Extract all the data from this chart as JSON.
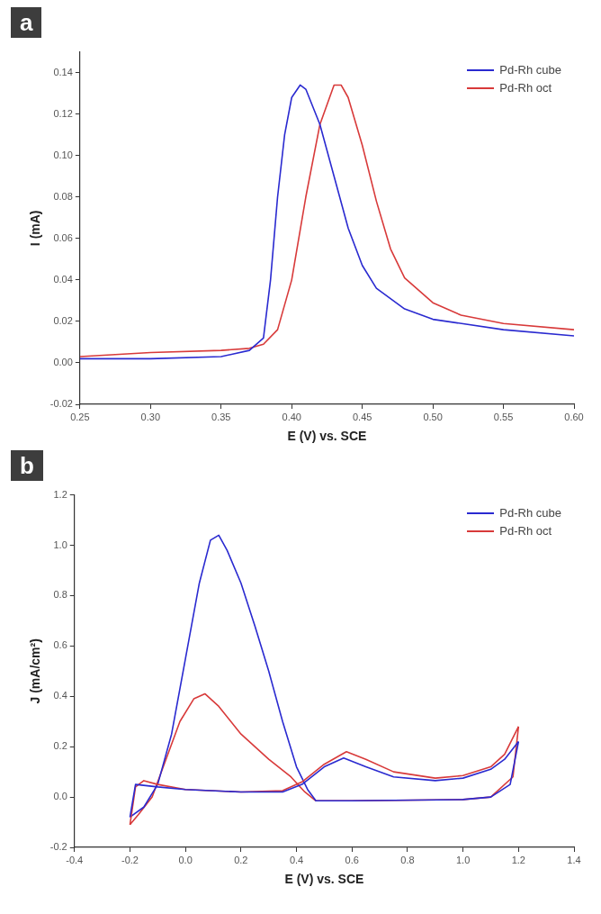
{
  "chart_data": [
    {
      "type": "line",
      "title": "a",
      "xlabel": "E (V) vs. SCE",
      "ylabel": "I (mA)",
      "legend": "top right",
      "grid": false,
      "marker": "none",
      "line_style": "solid",
      "xlim": [
        0.25,
        0.6
      ],
      "xticks": [
        {
          "value": 0.25,
          "label": "0.25"
        },
        {
          "value": 0.3,
          "label": "0.30"
        },
        {
          "value": 0.35,
          "label": "0.35"
        },
        {
          "value": 0.4,
          "label": "0.40"
        },
        {
          "value": 0.45,
          "label": "0.45"
        },
        {
          "value": 0.5,
          "label": "0.50"
        },
        {
          "value": 0.55,
          "label": "0.55"
        },
        {
          "value": 0.6,
          "label": "0.60"
        }
      ],
      "ylim": [
        -0.02,
        0.15
      ],
      "yticks": [
        {
          "value": -0.02,
          "label": "-0.02"
        },
        {
          "value": 0,
          "label": "0.00"
        },
        {
          "value": 0.02,
          "label": "0.02"
        },
        {
          "value": 0.04,
          "label": "0.04"
        },
        {
          "value": 0.06,
          "label": "0.06"
        },
        {
          "value": 0.08,
          "label": "0.08"
        },
        {
          "value": 0.1,
          "label": "0.10"
        },
        {
          "value": 0.12,
          "label": "0.12"
        },
        {
          "value": 0.14,
          "label": "0.14"
        }
      ],
      "series": [
        {
          "name": "Pd-Rh cube",
          "color": "#2a2ad0",
          "x": [
            0.25,
            0.3,
            0.35,
            0.37,
            0.38,
            0.385,
            0.39,
            0.395,
            0.4,
            0.406,
            0.41,
            0.42,
            0.43,
            0.44,
            0.45,
            0.46,
            0.48,
            0.5,
            0.55,
            0.6
          ],
          "values": [
            0.002,
            0.002,
            0.003,
            0.006,
            0.012,
            0.04,
            0.08,
            0.11,
            0.128,
            0.134,
            0.132,
            0.115,
            0.09,
            0.065,
            0.047,
            0.036,
            0.026,
            0.021,
            0.016,
            0.013
          ]
        },
        {
          "name": "Pd-Rh oct",
          "color": "#d83a3a",
          "x": [
            0.25,
            0.3,
            0.35,
            0.37,
            0.38,
            0.39,
            0.4,
            0.41,
            0.42,
            0.43,
            0.435,
            0.44,
            0.45,
            0.46,
            0.47,
            0.48,
            0.5,
            0.52,
            0.55,
            0.6
          ],
          "values": [
            0.003,
            0.005,
            0.006,
            0.007,
            0.009,
            0.016,
            0.04,
            0.08,
            0.115,
            0.134,
            0.134,
            0.128,
            0.105,
            0.078,
            0.055,
            0.041,
            0.029,
            0.023,
            0.019,
            0.016
          ]
        }
      ]
    },
    {
      "type": "line",
      "title": "b",
      "xlabel": "E (V) vs. SCE",
      "ylabel": "J (mA/cm²)",
      "legend": "top right",
      "grid": false,
      "marker": "none",
      "line_style": "solid",
      "xlim": [
        -0.4,
        1.4
      ],
      "xticks": [
        {
          "value": -0.4,
          "label": "-0.4"
        },
        {
          "value": -0.2,
          "label": "-0.2"
        },
        {
          "value": 0,
          "label": "0.0"
        },
        {
          "value": 0.2,
          "label": "0.2"
        },
        {
          "value": 0.4,
          "label": "0.4"
        },
        {
          "value": 0.6,
          "label": "0.6"
        },
        {
          "value": 0.8,
          "label": "0.8"
        },
        {
          "value": 1,
          "label": "1.0"
        },
        {
          "value": 1.2,
          "label": "1.2"
        },
        {
          "value": 1.4,
          "label": "1.4"
        }
      ],
      "ylim": [
        -0.2,
        1.2
      ],
      "yticks": [
        {
          "value": -0.2,
          "label": "-0.2"
        },
        {
          "value": 0,
          "label": "0.0"
        },
        {
          "value": 0.2,
          "label": "0.2"
        },
        {
          "value": 0.4,
          "label": "0.4"
        },
        {
          "value": 0.6,
          "label": "0.6"
        },
        {
          "value": 0.8,
          "label": "0.8"
        },
        {
          "value": 1,
          "label": "1.0"
        },
        {
          "value": 1.2,
          "label": "1.2"
        }
      ],
      "series": [
        {
          "name": "Pd-Rh cube",
          "color": "#2a2ad0",
          "x": [
            -0.2,
            -0.18,
            -0.1,
            0,
            0.2,
            0.35,
            0.42,
            0.5,
            0.57,
            0.65,
            0.75,
            0.9,
            1.0,
            1.1,
            1.15,
            1.2
          ],
          "values": [
            -0.08,
            0.05,
            0.04,
            0.03,
            0.02,
            0.02,
            0.05,
            0.12,
            0.155,
            0.12,
            0.08,
            0.065,
            0.075,
            0.11,
            0.15,
            0.22
          ]
        },
        {
          "name": "Pd-Rh oct",
          "color": "#d83a3a",
          "x": [
            -0.2,
            -0.18,
            -0.15,
            -0.1,
            0,
            0.2,
            0.35,
            0.42,
            0.5,
            0.58,
            0.65,
            0.75,
            0.9,
            1.0,
            1.1,
            1.15,
            1.2
          ],
          "values": [
            -0.11,
            0.04,
            0.065,
            0.05,
            0.03,
            0.02,
            0.025,
            0.06,
            0.13,
            0.18,
            0.15,
            0.1,
            0.075,
            0.085,
            0.12,
            0.17,
            0.28
          ]
        },
        {
          "color": "#2a2ad0",
          "x": [
            1.2,
            1.17,
            1.1,
            1.0,
            0.6,
            0.47,
            0.44,
            0.4,
            0.35,
            0.3,
            0.25,
            0.2,
            0.15,
            0.12,
            0.09,
            0.05,
            0,
            -0.05,
            -0.1,
            -0.15,
            -0.2
          ],
          "values": [
            0.22,
            0.05,
            0.0,
            -0.01,
            -0.015,
            -0.015,
            0.03,
            0.12,
            0.3,
            0.5,
            0.68,
            0.85,
            0.98,
            1.04,
            1.02,
            0.85,
            0.55,
            0.25,
            0.05,
            -0.04,
            -0.08
          ]
        },
        {
          "color": "#d83a3a",
          "x": [
            1.2,
            1.18,
            1.1,
            1.0,
            0.6,
            0.47,
            0.43,
            0.38,
            0.3,
            0.2,
            0.12,
            0.07,
            0.03,
            -0.02,
            -0.08,
            -0.12,
            -0.17,
            -0.2
          ],
          "values": [
            0.28,
            0.08,
            0.0,
            -0.01,
            -0.015,
            -0.015,
            0.02,
            0.08,
            0.15,
            0.25,
            0.36,
            0.41,
            0.39,
            0.3,
            0.12,
            0.0,
            -0.07,
            -0.11
          ]
        }
      ]
    }
  ]
}
